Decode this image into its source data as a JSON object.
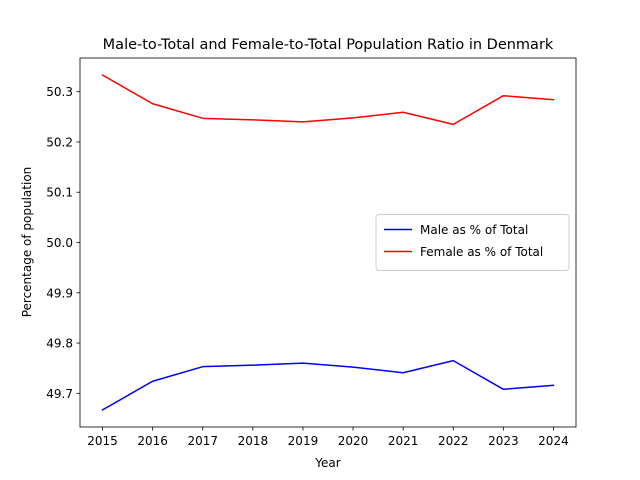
{
  "chart_data": {
    "type": "line",
    "title": "Male-to-Total and Female-to-Total Population Ratio in Denmark",
    "xlabel": "Year",
    "ylabel": "Percentage of population",
    "x": [
      2015,
      2016,
      2017,
      2018,
      2019,
      2020,
      2021,
      2022,
      2023,
      2024
    ],
    "xlim": [
      2014.55,
      2024.45
    ],
    "ylim": [
      49.633,
      50.367
    ],
    "x_ticks": [
      "2015",
      "2016",
      "2017",
      "2018",
      "2019",
      "2020",
      "2021",
      "2022",
      "2023",
      "2024"
    ],
    "y_ticks": [
      "49.7",
      "49.8",
      "49.9",
      "50.0",
      "50.1",
      "50.2",
      "50.3"
    ],
    "grid": false,
    "legend_position": "center-right",
    "series": [
      {
        "name": "Male as % of Total",
        "color": "#0000ff",
        "values": [
          49.667,
          49.724,
          49.753,
          49.756,
          49.76,
          49.752,
          49.741,
          49.765,
          49.708,
          49.716
        ]
      },
      {
        "name": "Female as % of Total",
        "color": "#ff0000",
        "values": [
          50.333,
          50.276,
          50.247,
          50.244,
          50.24,
          50.248,
          50.259,
          50.235,
          50.292,
          50.284
        ]
      }
    ]
  }
}
